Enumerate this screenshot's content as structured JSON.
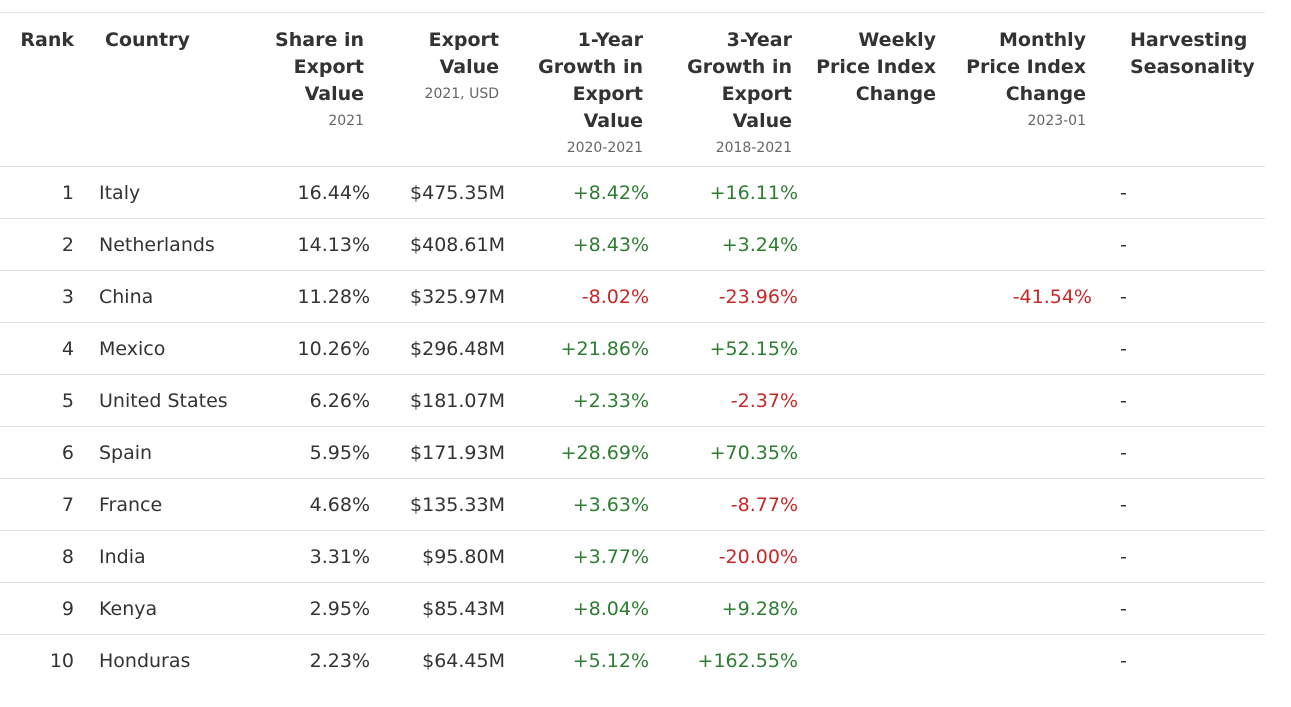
{
  "headers": {
    "rank": "Rank",
    "country": "Country",
    "share": "Share in Export Value",
    "share_sub": "2021",
    "export_value": "Export Value",
    "export_value_sub": "2021, USD",
    "growth_1y": "1-Year Growth in Export Value",
    "growth_1y_sub": "2020-2021",
    "growth_3y": "3-Year Growth in Export Value",
    "growth_3y_sub": "2018-2021",
    "weekly": "Weekly Price Index Change",
    "monthly": "Monthly Price Index Change",
    "monthly_sub": "2023-01",
    "season": "Harvesting Seasonality"
  },
  "rows": [
    {
      "rank": "1",
      "country": "Italy",
      "share": "16.44%",
      "value": "$475.35M",
      "g1": "+8.42%",
      "g1_dir": "pos",
      "g3": "+16.11%",
      "g3_dir": "pos",
      "weekly": "",
      "monthly": "",
      "monthly_dir": "",
      "season": "-"
    },
    {
      "rank": "2",
      "country": "Netherlands",
      "share": "14.13%",
      "value": "$408.61M",
      "g1": "+8.43%",
      "g1_dir": "pos",
      "g3": "+3.24%",
      "g3_dir": "pos",
      "weekly": "",
      "monthly": "",
      "monthly_dir": "",
      "season": "-"
    },
    {
      "rank": "3",
      "country": "China",
      "share": "11.28%",
      "value": "$325.97M",
      "g1": "-8.02%",
      "g1_dir": "neg",
      "g3": "-23.96%",
      "g3_dir": "neg",
      "weekly": "",
      "monthly": "-41.54%",
      "monthly_dir": "neg",
      "season": "-"
    },
    {
      "rank": "4",
      "country": "Mexico",
      "share": "10.26%",
      "value": "$296.48M",
      "g1": "+21.86%",
      "g1_dir": "pos",
      "g3": "+52.15%",
      "g3_dir": "pos",
      "weekly": "",
      "monthly": "",
      "monthly_dir": "",
      "season": "-"
    },
    {
      "rank": "5",
      "country": "United States",
      "share": "6.26%",
      "value": "$181.07M",
      "g1": "+2.33%",
      "g1_dir": "pos",
      "g3": "-2.37%",
      "g3_dir": "neg",
      "weekly": "",
      "monthly": "",
      "monthly_dir": "",
      "season": "-"
    },
    {
      "rank": "6",
      "country": "Spain",
      "share": "5.95%",
      "value": "$171.93M",
      "g1": "+28.69%",
      "g1_dir": "pos",
      "g3": "+70.35%",
      "g3_dir": "pos",
      "weekly": "",
      "monthly": "",
      "monthly_dir": "",
      "season": "-"
    },
    {
      "rank": "7",
      "country": "France",
      "share": "4.68%",
      "value": "$135.33M",
      "g1": "+3.63%",
      "g1_dir": "pos",
      "g3": "-8.77%",
      "g3_dir": "neg",
      "weekly": "",
      "monthly": "",
      "monthly_dir": "",
      "season": "-"
    },
    {
      "rank": "8",
      "country": "India",
      "share": "3.31%",
      "value": "$95.80M",
      "g1": "+3.77%",
      "g1_dir": "pos",
      "g3": "-20.00%",
      "g3_dir": "neg",
      "weekly": "",
      "monthly": "",
      "monthly_dir": "",
      "season": "-"
    },
    {
      "rank": "9",
      "country": "Kenya",
      "share": "2.95%",
      "value": "$85.43M",
      "g1": "+8.04%",
      "g1_dir": "pos",
      "g3": "+9.28%",
      "g3_dir": "pos",
      "weekly": "",
      "monthly": "",
      "monthly_dir": "",
      "season": "-"
    },
    {
      "rank": "10",
      "country": "Honduras",
      "share": "2.23%",
      "value": "$64.45M",
      "g1": "+5.12%",
      "g1_dir": "pos",
      "g3": "+162.55%",
      "g3_dir": "pos",
      "weekly": "",
      "monthly": "",
      "monthly_dir": "",
      "season": "-"
    }
  ],
  "colors": {
    "positive": "#2e7d32",
    "negative": "#c62828"
  }
}
